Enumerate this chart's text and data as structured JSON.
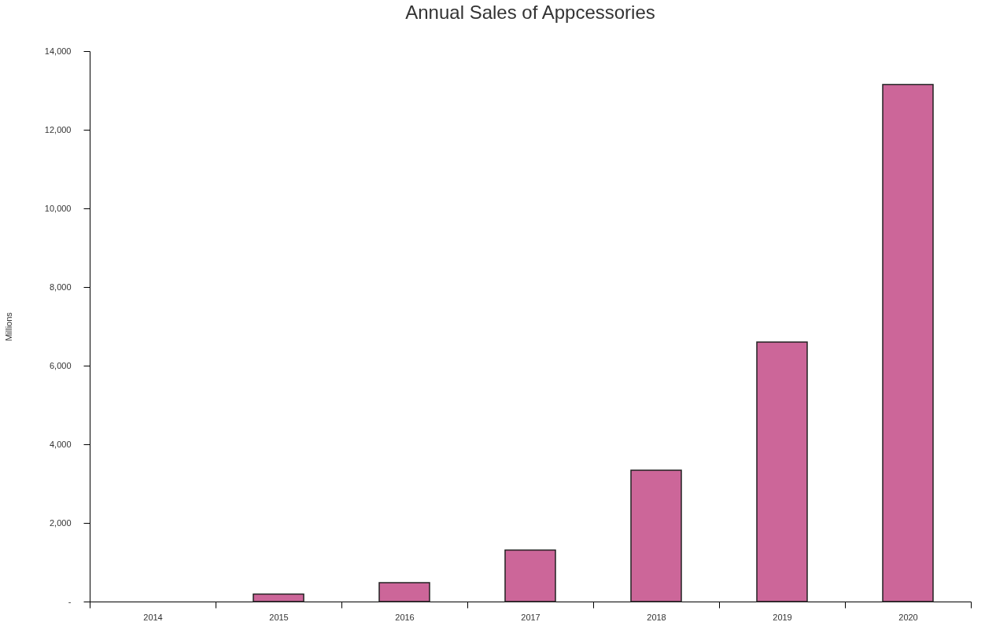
{
  "chart_data": {
    "type": "bar",
    "title": "Annual Sales of Appcessories",
    "ylabel": "Millions",
    "categories": [
      "2014",
      "2015",
      "2016",
      "2017",
      "2018",
      "2019",
      "2020"
    ],
    "values": [
      null,
      190,
      480,
      1310,
      3340,
      6600,
      13150
    ],
    "color": "#cc6699",
    "ylim": [
      0,
      14000
    ],
    "yticks": [
      {
        "value": 0,
        "label": "-"
      },
      {
        "value": 2000,
        "label": "2,000"
      },
      {
        "value": 4000,
        "label": "4,000"
      },
      {
        "value": 6000,
        "label": "6,000"
      },
      {
        "value": 8000,
        "label": "8,000"
      },
      {
        "value": 10000,
        "label": "10,000"
      },
      {
        "value": 12000,
        "label": "12,000"
      },
      {
        "value": 14000,
        "label": "14,000"
      }
    ],
    "grid": false
  }
}
